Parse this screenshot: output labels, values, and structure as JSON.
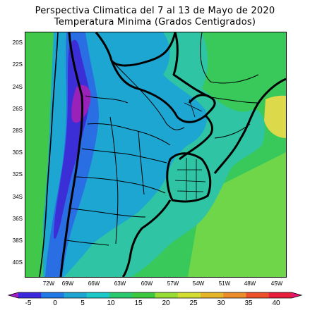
{
  "title": {
    "line1": "Perspectiva Climatica del 7 al 13 de Mayo de 2020",
    "line2": "Temperatura Minima (Grados Centigrados)"
  },
  "map": {
    "latitude_labels": [
      "20S",
      "22S",
      "24S",
      "26S",
      "28S",
      "30S",
      "32S",
      "34S",
      "36S",
      "38S",
      "40S"
    ],
    "longitude_labels": [
      "72W",
      "69W",
      "66W",
      "63W",
      "60W",
      "57W",
      "54W",
      "51W",
      "48W",
      "45W"
    ],
    "field_colors": {
      "below_-5": "#a020a0",
      "-5_to_0": "#3c28d2",
      "0_to_5": "#1e78e6",
      "5_to_10": "#1ea5d2",
      "10_to_15": "#28c8a0",
      "15_to_20": "#3cc83c",
      "20_to_25": "#96dc3c",
      "25_to_30": "#e6dc3c"
    }
  },
  "legend": {
    "tick_labels": [
      "-5",
      "0",
      "5",
      "10",
      "15",
      "20",
      "25",
      "30",
      "35",
      "40"
    ],
    "colors": [
      "#a01ec8",
      "#3c28dc",
      "#1e78e6",
      "#1ea5d2",
      "#1ec8c8",
      "#28c86e",
      "#3cc83c",
      "#96dc32",
      "#d2dc32",
      "#e6b428",
      "#eb8c28",
      "#eb5028",
      "#e61e3c",
      "#e6146e"
    ]
  }
}
